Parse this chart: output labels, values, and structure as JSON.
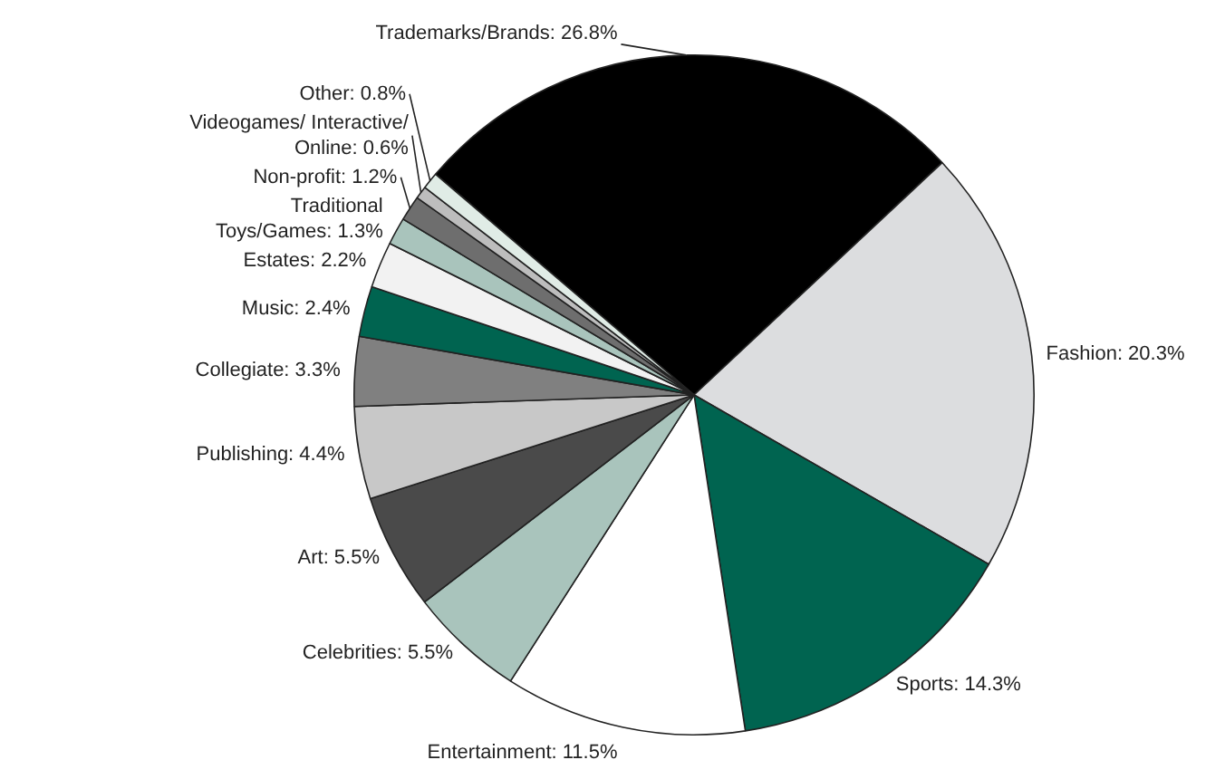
{
  "chart_data": {
    "type": "pie",
    "categories": [
      "Trademarks/Brands",
      "Fashion",
      "Sports",
      "Entertainment",
      "Celebrities",
      "Art",
      "Publishing",
      "Collegiate",
      "Music",
      "Estates",
      "Traditional Toys/Games",
      "Non-profit",
      "Videogames/ Interactive/ Online",
      "Other"
    ],
    "values": [
      26.8,
      20.3,
      14.3,
      11.5,
      5.5,
      5.5,
      4.4,
      3.3,
      2.4,
      2.2,
      1.3,
      1.2,
      0.6,
      0.8
    ],
    "value_labels": [
      "26.8%",
      "20.3%",
      "14.3%",
      "11.5%",
      "5.5%",
      "5.5%",
      "4.4%",
      "3.3%",
      "2.4%",
      "2.2%",
      "1.3%",
      "1.2%",
      "0.6%",
      "0.8%"
    ],
    "colors": [
      "#000000",
      "#dcdddf",
      "#006450",
      "#ffffff",
      "#a9c4bc",
      "#4a4a4a",
      "#c8c8c8",
      "#808080",
      "#006450",
      "#f2f2f2",
      "#a9c4bc",
      "#6e6e6e",
      "#bdbdbd",
      "#e0ece6"
    ],
    "legend": false
  }
}
